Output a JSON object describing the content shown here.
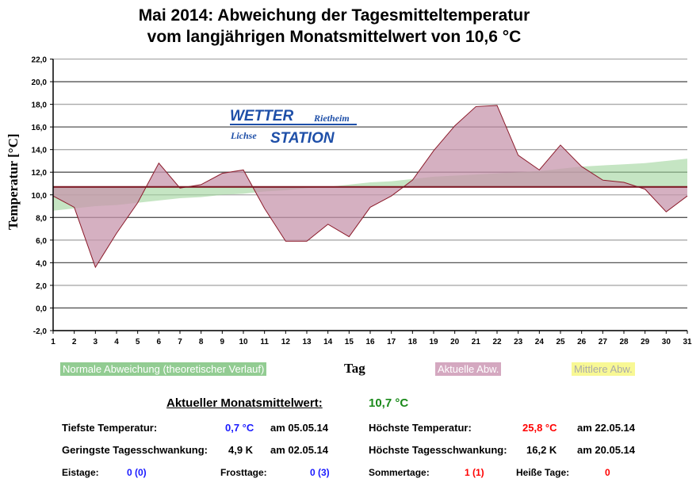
{
  "title": {
    "line1": "Mai 2014: Abweichung der Tagesmitteltemperatur",
    "line2": "vom langjährigen Monatsmittelwert von 10,6 °C"
  },
  "logo": {
    "w1": "WETTER",
    "w2": "Rietheim",
    "w3": "Lichse",
    "w4": "STATION"
  },
  "colors": {
    "actual_fill": "#c796ac",
    "actual_line": "#8b1a2a",
    "normal_fill": "#9fd49b",
    "mean_line": "#7a1420",
    "legend_normal": "#92cc92",
    "legend_actual": "#d4a8c0",
    "legend_mean": "#f8f894"
  },
  "chart_data": {
    "type": "area",
    "title": "Mai 2014: Abweichung der Tagesmitteltemperatur vom langjährigen Monatsmittelwert von 10,6 °C",
    "xlabel": "Tag",
    "ylabel": "Temperatur [°C]",
    "ylim": [
      -2,
      22
    ],
    "xlim": [
      1,
      31
    ],
    "yticks": [
      "22,0",
      "20,0",
      "18,0",
      "16,0",
      "14,0",
      "12,0",
      "10,0",
      "8,0",
      "6,0",
      "4,0",
      "2,0",
      "0,0",
      "-2,0"
    ],
    "x": [
      1,
      2,
      3,
      4,
      5,
      6,
      7,
      8,
      9,
      10,
      11,
      12,
      13,
      14,
      15,
      16,
      17,
      18,
      19,
      20,
      21,
      22,
      23,
      24,
      25,
      26,
      27,
      28,
      29,
      30,
      31
    ],
    "series": [
      {
        "name": "Aktuelle Abw.",
        "values": [
          9.9,
          8.9,
          3.6,
          6.6,
          9.3,
          12.8,
          10.6,
          10.9,
          11.9,
          12.2,
          8.8,
          5.9,
          5.9,
          7.4,
          6.3,
          8.9,
          9.9,
          11.3,
          13.9,
          16.1,
          17.8,
          17.9,
          13.5,
          12.2,
          14.4,
          12.5,
          11.3,
          11.1,
          10.5,
          8.5,
          9.9
        ]
      },
      {
        "name": "Normale Abweichung (theoretischer Verlauf)",
        "values": [
          8.6,
          8.8,
          9.0,
          9.1,
          9.3,
          9.5,
          9.7,
          9.8,
          10.0,
          10.1,
          10.3,
          10.4,
          10.6,
          10.7,
          10.9,
          11.1,
          11.2,
          11.4,
          11.6,
          11.7,
          11.8,
          11.9,
          12.0,
          12.1,
          12.3,
          12.5,
          12.6,
          12.7,
          12.8,
          13.0,
          13.2
        ]
      },
      {
        "name": "Mittlere Abw.",
        "value": 10.7
      }
    ],
    "grid": true
  },
  "legend": {
    "normal": "Normale Abweichung (theoretischer Verlauf)",
    "actual": "Aktuelle Abw.",
    "mean": "Mittlere Abw."
  },
  "stats": {
    "mean_label": "Aktueller Monatsmittelwert:",
    "mean_value": "10,7 °C",
    "min_label": "Tiefste Temperatur:",
    "min_value": "0,7 °C",
    "min_date": "am 05.05.14",
    "max_label": "Höchste Temperatur:",
    "max_value": "25,8 °C",
    "max_date": "am 22.05.14",
    "minrange_label": "Geringste Tagesschwankung:",
    "minrange_value": "4,9 K",
    "minrange_date": "am 02.05.14",
    "maxrange_label": "Höchste Tagesschwankung:",
    "maxrange_value": "16,2 K",
    "maxrange_date": "am 20.05.14",
    "eis_label": "Eistage:",
    "eis_value": "0 (0)",
    "frost_label": "Frosttage:",
    "frost_value": "0 (3)",
    "sommer_label": "Sommertage:",
    "sommer_value": "1 (1)",
    "heiss_label": "Heiße Tage:",
    "heiss_value": "0"
  }
}
